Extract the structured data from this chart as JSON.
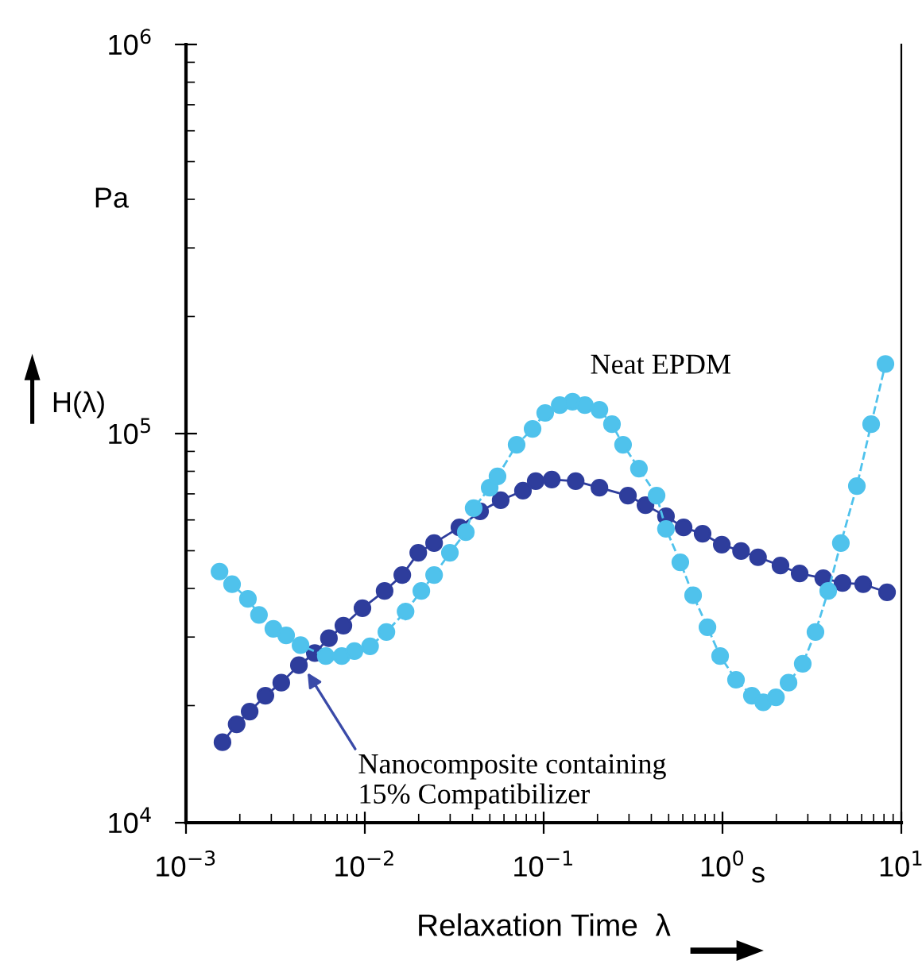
{
  "chart_data": {
    "type": "line",
    "xlabel": "Relaxation Time  λ",
    "ylabel": "H(λ)",
    "log": "xy",
    "marker": "circle",
    "grid": false,
    "xlim": [
      0.001,
      10
    ],
    "xticks": [
      {
        "value": 0.001,
        "label": "10$^{−3}$"
      },
      {
        "value": 0.01,
        "label": "10$^{−2}$"
      },
      {
        "value": 0.1,
        "label": "10$^{−1}$"
      },
      {
        "value": 1,
        "label": "10$^{0}$"
      },
      {
        "value": 10,
        "label": "10$^{1}$"
      }
    ],
    "ylim": [
      10000,
      1000000
    ],
    "yticks": [
      {
        "value": 10000,
        "label": "10$^{4}$"
      },
      {
        "value": 100000,
        "label": "10$^{5}$"
      },
      {
        "value": 1000000,
        "label": "10$^{6}$"
      }
    ],
    "series": [
      {
        "color": "#2e3d9c",
        "line_style": "solid",
        "x": [
          0.0016,
          0.00192,
          0.00227,
          0.00278,
          0.00341,
          0.00428,
          0.00525,
          0.0063,
          0.00759,
          0.0097,
          0.0129,
          0.0162,
          0.0199,
          0.0244,
          0.0338,
          0.0441,
          0.0575,
          0.0766,
          0.0903,
          0.111,
          0.151,
          0.205,
          0.296,
          0.371,
          0.483,
          0.606,
          0.774,
          0.991,
          1.27,
          1.58,
          2.11,
          2.7,
          3.66,
          4.69,
          6.12,
          8.32
        ],
        "values": [
          16100,
          17900,
          19300,
          21200,
          22900,
          25400,
          27300,
          29800,
          32100,
          35600,
          39400,
          43300,
          49400,
          52300,
          57400,
          63100,
          67400,
          71300,
          75500,
          76200,
          75500,
          72600,
          69300,
          65500,
          61300,
          57400,
          55300,
          51800,
          49900,
          48100,
          45800,
          43700,
          42500,
          41300,
          41000,
          39100
        ]
      },
      {
        "name": "Neat EPDM",
        "color": "#4fc2ec",
        "line_style": "dashed",
        "x": [
          0.00154,
          0.00181,
          0.00222,
          0.00256,
          0.00308,
          0.00363,
          0.00437,
          0.00605,
          0.00743,
          0.00875,
          0.0107,
          0.0132,
          0.0169,
          0.0207,
          0.0244,
          0.0299,
          0.0367,
          0.0406,
          0.0499,
          0.0552,
          0.0706,
          0.0867,
          0.102,
          0.123,
          0.145,
          0.17,
          0.205,
          0.241,
          0.278,
          0.341,
          0.428,
          0.483,
          0.581,
          0.685,
          0.824,
          0.97,
          1.19,
          1.46,
          1.69,
          1.99,
          2.34,
          2.81,
          3.31,
          3.9,
          4.59,
          5.64,
          6.78,
          8.15
        ],
        "values": [
          44200,
          41000,
          37600,
          34200,
          31500,
          30300,
          28600,
          26800,
          26800,
          27600,
          28400,
          30900,
          34900,
          39400,
          43300,
          49400,
          55800,
          64300,
          72600,
          77600,
          93600,
          102800,
          113000,
          118400,
          120700,
          118400,
          115100,
          105700,
          93600,
          81300,
          69300,
          56900,
          46700,
          38400,
          31800,
          26800,
          23300,
          21200,
          20400,
          21000,
          22900,
          25600,
          30900,
          39400,
          52300,
          73300,
          105700,
          151000
        ]
      }
    ],
    "annotations": [
      {
        "text": "Nanocomposite containing\n15% Compatibilizer",
        "x": 0.0045,
        "y": 25400
      },
      "Pa",
      "s"
    ]
  }
}
